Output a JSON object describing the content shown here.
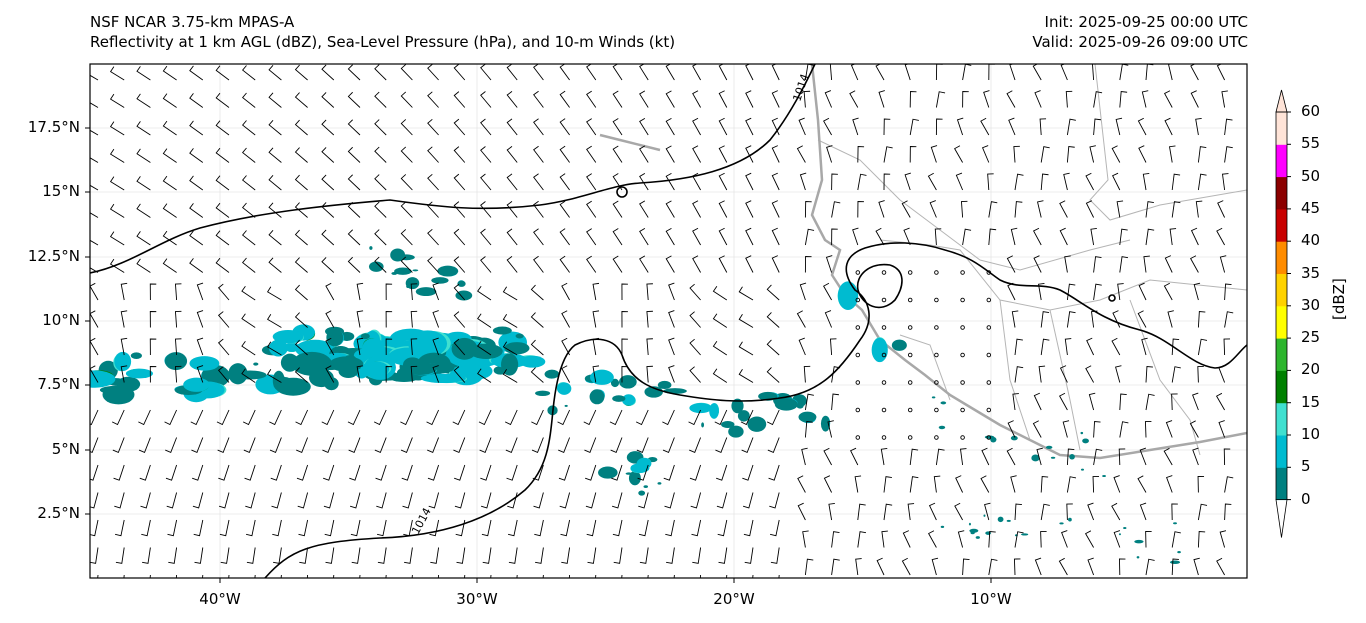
{
  "header": {
    "model": "NSF NCAR 3.75-km MPAS-A",
    "fields": "Reflectivity at 1 km AGL (dBZ), Sea-Level Pressure (hPa), and 10-m Winds (kt)",
    "init": "Init: 2025-09-25 00:00 UTC",
    "valid": "Valid: 2025-09-26 09:00 UTC"
  },
  "axes": {
    "lat_ticks": [
      "17.5°N",
      "15°N",
      "12.5°N",
      "10°N",
      "7.5°N",
      "5°N",
      "2.5°N"
    ],
    "lon_ticks": [
      "40°W",
      "30°W",
      "20°W",
      "10°W"
    ]
  },
  "map_extent": {
    "lon": [
      -45,
      0.5
    ],
    "lat": [
      0,
      20
    ]
  },
  "isobar_labels": [
    "1014",
    "1014"
  ],
  "colorbar": {
    "label": "[dBZ]",
    "ticks": [
      "60",
      "55",
      "50",
      "45",
      "40",
      "35",
      "30",
      "25",
      "20",
      "15",
      "10",
      "5",
      "0"
    ],
    "colors": [
      "#008080",
      "#00bbd0",
      "#40e0d0",
      "#008000",
      "#2db52d",
      "#ffff00",
      "#ffd200",
      "#ff8c00",
      "#c80000",
      "#8b0000",
      "#ff00ff",
      "#ffe4d8"
    ]
  }
}
